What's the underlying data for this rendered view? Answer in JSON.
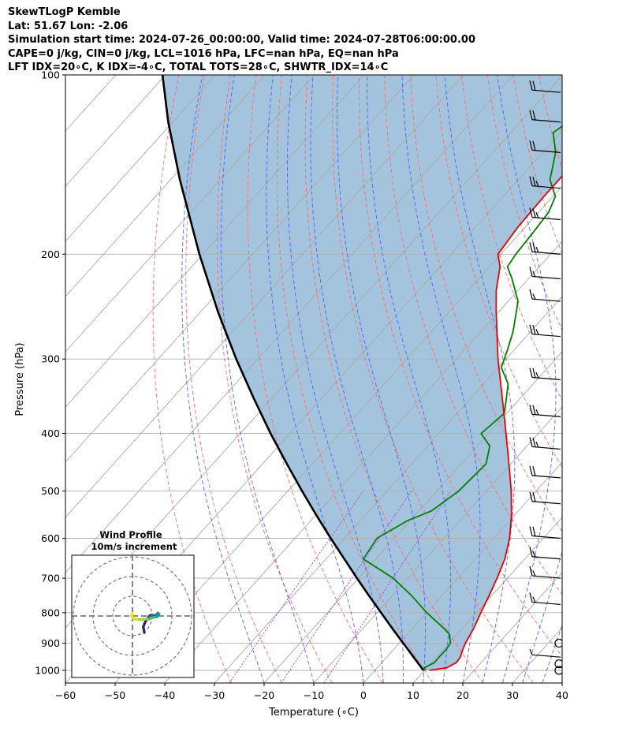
{
  "header": {
    "line1": "SkewTLogP Kemble",
    "line2": "Lat: 51.67   Lon: -2.06",
    "line3": "Simulation start time: 2024-07-26_00:00:00, Valid time: 2024-07-28T06:00:00.00",
    "line4": "CAPE=0 j/kg, CIN=0 j/kg, LCL=1016 hPa, LFC=nan hPa, EQ=nan hPa",
    "line5": "LFT IDX=20∘C, K IDX=-4∘C, TOTAL TOTS=28∘C, SHWTR_IDX=14∘C"
  },
  "chart_data": {
    "type": "line",
    "subtype": "skew-T log-P",
    "xlabel": "Temperature (∘C)",
    "ylabel": "Pressure (hPa)",
    "xlim": [
      -60,
      40
    ],
    "ylim": [
      1050,
      100
    ],
    "y_scale": "log",
    "x_ticks": [
      "−60",
      "−50",
      "−40",
      "−30",
      "−20",
      "−10",
      "0",
      "10",
      "20",
      "30",
      "40"
    ],
    "y_ticks": [
      "100",
      "200",
      "300",
      "400",
      "500",
      "600",
      "700",
      "800",
      "900",
      "1000"
    ],
    "grid": true,
    "colors": {
      "temperature": "#ee0000",
      "dewpoint": "#008000",
      "parcel": "#000000",
      "shading": "#a4c4de",
      "dry_adiabat": "#ff6666",
      "moist_adiabat": "#4a5cff",
      "mixing_ratio": "#9a4fd0",
      "isotherm": "#a0a0a0"
    },
    "series": [
      {
        "key": "temperature",
        "pressure": [
          1000,
          990,
          970,
          950,
          925,
          900,
          850,
          800,
          750,
          700,
          650,
          600,
          550,
          500,
          450,
          400,
          350,
          300,
          250,
          230,
          210,
          200,
          180,
          160,
          150,
          130,
          120,
          110,
          100
        ],
        "temperature": [
          11,
          14,
          15,
          14.8,
          14,
          13.3,
          12.3,
          10.9,
          9.5,
          7.9,
          6,
          3.2,
          -0.5,
          -5,
          -10.4,
          -16.5,
          -23.5,
          -31.6,
          -40.5,
          -44.4,
          -47.9,
          -50.6,
          -51.5,
          -51.8,
          -51.8,
          -51.5,
          -51.5,
          -51.5,
          -50.5
        ]
      },
      {
        "key": "dewpoint",
        "pressure": [
          1000,
          990,
          970,
          950,
          925,
          900,
          870,
          850,
          800,
          750,
          700,
          650,
          600,
          560,
          540,
          500,
          450,
          420,
          400,
          370,
          350,
          330,
          310,
          290,
          270,
          240,
          220,
          210,
          200,
          185,
          170,
          160,
          150,
          135,
          125,
          110,
          100
        ],
        "temperature": [
          10.2,
          9.5,
          10.6,
          10.5,
          10.6,
          10.3,
          8.5,
          6.3,
          0,
          -6,
          -13,
          -22.5,
          -23.5,
          -20.5,
          -17.5,
          -15.6,
          -15,
          -17.5,
          -21.5,
          -20.5,
          -22.7,
          -25.1,
          -29.4,
          -31.3,
          -33.5,
          -38,
          -43.3,
          -46.4,
          -47,
          -47.4,
          -48,
          -49.5,
          -53.6,
          -57.4,
          -61.5,
          -58,
          -57
        ]
      },
      {
        "key": "parcel",
        "pressure": [
          1000,
          950,
          900,
          850,
          800,
          750,
          700,
          650,
          600,
          550,
          500,
          450,
          400,
          350,
          300,
          250,
          200,
          150,
          120,
          100
        ],
        "temperature": [
          9.8,
          5.4,
          0.8,
          -4.1,
          -9.2,
          -14.6,
          -20.3,
          -26.3,
          -32.8,
          -39.7,
          -47.1,
          -55.1,
          -63.9,
          -73.5,
          -84.3,
          -96.5,
          -110.7,
          -128.1,
          -140.9,
          -150.6
        ]
      }
    ],
    "wind_barbs": [
      {
        "pressure": 1000,
        "marker": "calm"
      },
      {
        "pressure": 975,
        "marker": "calm"
      },
      {
        "pressure": 950,
        "barb": "short"
      },
      {
        "pressure": 900,
        "marker": "calm"
      },
      {
        "pressure": 775,
        "barb": "long+short"
      },
      {
        "pressure": 700,
        "barb": "long+short"
      },
      {
        "pressure": 650,
        "barb": "long+short"
      },
      {
        "pressure": 600,
        "barb": "long+long"
      },
      {
        "pressure": 525,
        "barb": "long+long"
      },
      {
        "pressure": 475,
        "barb": "long+long"
      },
      {
        "pressure": 425,
        "barb": "long+long+short"
      },
      {
        "pressure": 375,
        "barb": "long+long+short"
      },
      {
        "pressure": 325,
        "barb": "long+long+short"
      },
      {
        "pressure": 275,
        "barb": "long+long+short"
      },
      {
        "pressure": 240,
        "barb": "long+short"
      },
      {
        "pressure": 220,
        "barb": "long+short"
      },
      {
        "pressure": 200,
        "barb": "long+long+short"
      },
      {
        "pressure": 175,
        "barb": "long+long+short"
      },
      {
        "pressure": 155,
        "barb": "long+long+short"
      },
      {
        "pressure": 135,
        "barb": "long+long"
      },
      {
        "pressure": 120,
        "barb": "long+long"
      },
      {
        "pressure": 107,
        "barb": "long+long"
      }
    ],
    "hodograph": {
      "title_line1": "Wind Profile",
      "title_line2": "10m/s increment",
      "ring_step_ms": 10,
      "rings": 3,
      "u": [
        6,
        5.8,
        5.5,
        6.5,
        7.5,
        8.5,
        9.5,
        10,
        10.8,
        11.5,
        12,
        12.6,
        13,
        13.5,
        13.3,
        12.6,
        11.3,
        10.2,
        9,
        7.5,
        5.5,
        3.8,
        2.5,
        1.2,
        0.2,
        -0.4,
        -0.6,
        -0.4,
        0.1,
        0.1
      ],
      "v": [
        -8.5,
        -7,
        -5.5,
        -3,
        -1.5,
        0,
        0.5,
        0.4,
        0.3,
        0.2,
        0.6,
        1.2,
        1.5,
        1.0,
        0.3,
        -0.4,
        -0.6,
        -0.9,
        -1.3,
        -1.6,
        -1.7,
        -1.8,
        -1.8,
        -1.6,
        -1.1,
        -0.3,
        0.4,
        0.9,
        1.3,
        0.9
      ]
    }
  }
}
